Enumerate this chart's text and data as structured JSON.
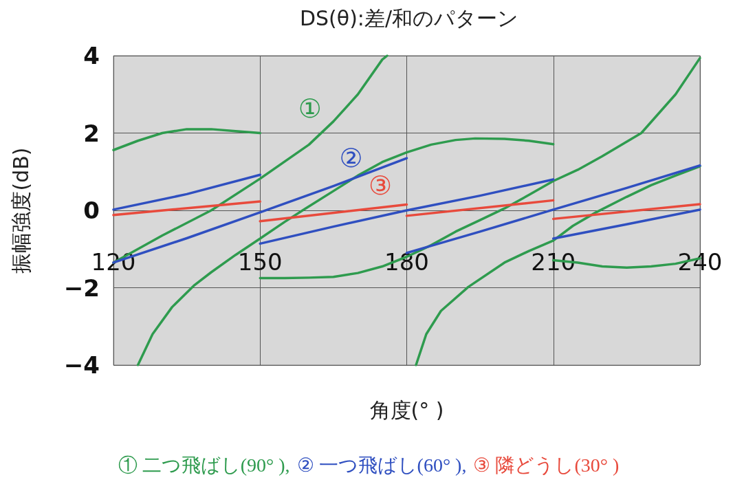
{
  "chart_data": {
    "type": "line",
    "title": "DS(θ):差/和のパターン",
    "xlabel": "角度(° )",
    "ylabel": "振幅強度(dB)",
    "xlim": [
      120,
      240
    ],
    "xticks": [
      120,
      150,
      180,
      210,
      240
    ],
    "ylim": [
      -4,
      4
    ],
    "yticks": [
      4,
      2,
      0,
      {
        "value": -2,
        "label": "−2"
      },
      {
        "value": -4,
        "label": "−4"
      }
    ],
    "grid": true,
    "legend": false,
    "marker": "none",
    "line_style": "solid",
    "series": [
      {
        "name": "①",
        "color": "#2e9b4e",
        "x": [
          120,
          125,
          130,
          135,
          140,
          145,
          150,
          null,
          120,
          130,
          140,
          150,
          160,
          165,
          170,
          175,
          176,
          null,
          125,
          128,
          132,
          136.6,
          140,
          145,
          150,
          155,
          159.2,
          165,
          170,
          175,
          180,
          185,
          190,
          194,
          200,
          205,
          210,
          null,
          150,
          155,
          160,
          165,
          170,
          175,
          180,
          185,
          190,
          195,
          200,
          205,
          210,
          215,
          220,
          228,
          235,
          240,
          null,
          181.9,
          184,
          187,
          192.6,
          200,
          205,
          210,
          214,
          218.6,
          225,
          230,
          235,
          240,
          null,
          210,
          215,
          220,
          225,
          230,
          235,
          240
        ],
        "values": [
          1.56,
          1.8,
          2.0,
          2.1,
          2.1,
          2.05,
          2.0,
          null,
          -1.35,
          -0.65,
          0.0,
          0.82,
          1.7,
          2.3,
          3.0,
          3.9,
          4.0,
          null,
          -4.0,
          -3.2,
          -2.5,
          -1.93,
          -1.6,
          -1.15,
          -0.73,
          -0.3,
          0.04,
          0.5,
          0.9,
          1.25,
          1.5,
          1.7,
          1.82,
          1.86,
          1.85,
          1.8,
          1.71,
          null,
          -1.75,
          -1.75,
          -1.74,
          -1.72,
          -1.62,
          -1.45,
          -1.2,
          -0.9,
          -0.55,
          -0.25,
          0.05,
          0.4,
          0.76,
          1.05,
          1.4,
          2.0,
          3.0,
          3.94,
          null,
          -4.0,
          -3.2,
          -2.6,
          -1.98,
          -1.35,
          -1.05,
          -0.78,
          -0.4,
          -0.06,
          0.35,
          0.65,
          0.9,
          1.14,
          null,
          -1.29,
          -1.35,
          -1.45,
          -1.48,
          -1.45,
          -1.38,
          -1.24
        ]
      },
      {
        "name": "②",
        "color": "#2f4fc0",
        "x": [
          120,
          135,
          150,
          null,
          120,
          135,
          150,
          165,
          180,
          null,
          150,
          165,
          180,
          195,
          210,
          null,
          180,
          195,
          210,
          225,
          240,
          null,
          210,
          225,
          240
        ],
        "values": [
          0.02,
          0.42,
          0.92,
          null,
          -1.35,
          -0.72,
          -0.05,
          0.63,
          1.35,
          null,
          -0.86,
          -0.42,
          0.0,
          0.38,
          0.8,
          null,
          -1.1,
          -0.55,
          0.02,
          0.58,
          1.16,
          null,
          -0.73,
          -0.36,
          0.02
        ]
      },
      {
        "name": "③",
        "color": "#e84a3c",
        "x": [
          120,
          150,
          null,
          150,
          180,
          null,
          180,
          210,
          null,
          210,
          240
        ],
        "values": [
          -0.12,
          0.23,
          null,
          -0.28,
          0.15,
          null,
          -0.14,
          0.26,
          null,
          -0.22,
          0.16
        ]
      }
    ],
    "annotations": [
      "① 二つ飛ばし(90° ),",
      "② 一つ飛ばし(60° ),",
      "③ 隣どうし(30° )"
    ]
  }
}
